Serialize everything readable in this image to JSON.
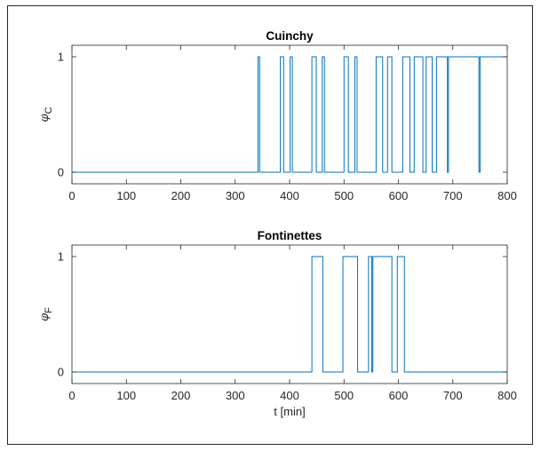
{
  "chart_data": [
    {
      "type": "line",
      "title": "Cuinchy",
      "xlabel": "",
      "ylabel": "φ",
      "ylabel_sub": "C",
      "xlim": [
        0,
        800
      ],
      "ylim": [
        -0.1,
        1.1
      ],
      "xticks": [
        0,
        100,
        200,
        300,
        400,
        500,
        600,
        700,
        800
      ],
      "yticks": [
        0,
        1
      ],
      "grid": false,
      "series": [
        {
          "color": "#0072BD",
          "initial": 0,
          "toggles": [
            342,
            345,
            383,
            389,
            401,
            405,
            441,
            449,
            460,
            464,
            500,
            508,
            520,
            524,
            559,
            571,
            580,
            588,
            608,
            621,
            629,
            645,
            651,
            662,
            670,
            690,
            692,
            748,
            750
          ]
        }
      ]
    },
    {
      "type": "line",
      "title": "Fontinettes",
      "xlabel": "t [min]",
      "ylabel": "φ",
      "ylabel_sub": "F",
      "xlim": [
        0,
        800
      ],
      "ylim": [
        -0.1,
        1.1
      ],
      "xticks": [
        0,
        100,
        200,
        300,
        400,
        500,
        600,
        700,
        800
      ],
      "yticks": [
        0,
        1
      ],
      "grid": false,
      "series": [
        {
          "color": "#0072BD",
          "initial": 0,
          "toggles": [
            441,
            461,
            498,
            525,
            545,
            551,
            553,
            588,
            598,
            611
          ]
        }
      ]
    }
  ]
}
